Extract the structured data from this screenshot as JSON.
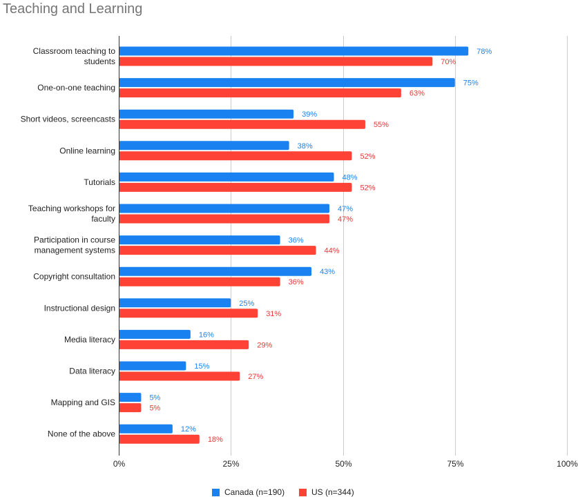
{
  "chart_data": {
    "type": "bar",
    "orientation": "horizontal",
    "title": "Teaching and Learning",
    "categories": [
      [
        "Classroom teaching to",
        "students"
      ],
      [
        "One-on-one teaching"
      ],
      [
        "Short videos, screencasts"
      ],
      [
        "Online learning"
      ],
      [
        "Tutorials"
      ],
      [
        "Teaching workshops for",
        "faculty"
      ],
      [
        "Participation in course",
        "management systems"
      ],
      [
        "Copyright consultation"
      ],
      [
        "Instructional design"
      ],
      [
        "Media literacy"
      ],
      [
        "Data literacy"
      ],
      [
        "Mapping and GIS"
      ],
      [
        "None of the above"
      ]
    ],
    "series": [
      {
        "name": "Canada (n=190)",
        "color": "#1a82f0",
        "label_color": "#1a82f0",
        "values": [
          78,
          75,
          39,
          38,
          48,
          47,
          36,
          43,
          25,
          16,
          15,
          5,
          12
        ],
        "labels": [
          "78%",
          "75%",
          "39%",
          "38%",
          "48%",
          "47%",
          "36%",
          "43%",
          "25%",
          "16%",
          "15%",
          "5%",
          "12%"
        ]
      },
      {
        "name": "US (n=344)",
        "color": "#fe4235",
        "label_color": "#e53935",
        "values": [
          70,
          63,
          55,
          52,
          52,
          47,
          44,
          36,
          31,
          29,
          27,
          5,
          18
        ],
        "labels": [
          "70%",
          "63%",
          "55%",
          "52%",
          "52%",
          "47%",
          "44%",
          "36%",
          "31%",
          "29%",
          "27%",
          "5%",
          "18%"
        ]
      }
    ],
    "xlim": [
      0,
      100
    ],
    "x_ticks": [
      0,
      25,
      50,
      75,
      100
    ],
    "x_tick_labels": [
      "0%",
      "25%",
      "50%",
      "75%",
      "100%"
    ],
    "grid": "vertical",
    "legend_position": "bottom-center",
    "xlabel": "",
    "ylabel": ""
  }
}
